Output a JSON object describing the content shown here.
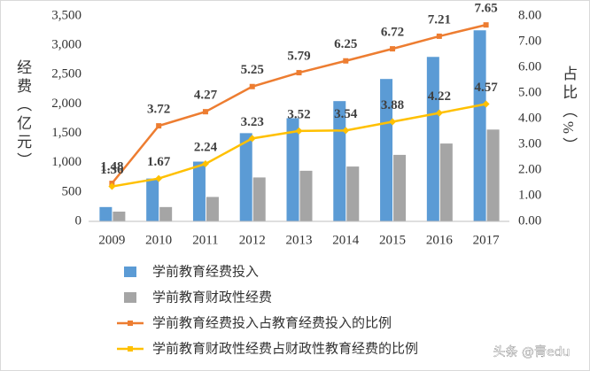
{
  "chart_data": {
    "type": "bar",
    "categories": [
      "2009",
      "2010",
      "2011",
      "2012",
      "2013",
      "2014",
      "2015",
      "2016",
      "2017"
    ],
    "series": [
      {
        "name": "学前教育经费投入",
        "color": "#5b9bd5",
        "type": "bar",
        "values": [
          244,
          730,
          1018,
          1503,
          1758,
          2049,
          2426,
          2802,
          3255
        ]
      },
      {
        "name": "学前教育财政性经费",
        "color": "#a5a5a5",
        "type": "bar",
        "values": [
          166,
          244,
          416,
          748,
          862,
          934,
          1133,
          1326,
          1564
        ]
      },
      {
        "name": "学前教育经费投入占教育经费投入的比例",
        "color": "#ed7d31",
        "type": "line",
        "axis": "y2",
        "values": [
          1.48,
          3.72,
          4.27,
          5.25,
          5.79,
          6.25,
          6.72,
          7.21,
          7.65
        ]
      },
      {
        "name": "学前教育财政性经费占财政性教育经费的比例",
        "color": "#ffc000",
        "type": "line",
        "axis": "y2",
        "values": [
          1.36,
          1.67,
          2.24,
          3.23,
          3.52,
          3.54,
          3.88,
          4.22,
          4.57
        ]
      }
    ],
    "ylabel": "经费（亿元）",
    "y2label": "占比（%）",
    "ylim": [
      0,
      3500
    ],
    "yticks": [
      0,
      500,
      {
        "value": 1000,
        "label": "1,000"
      },
      {
        "value": 1500,
        "label": "1,500"
      },
      {
        "value": 2000,
        "label": "2,000"
      },
      {
        "value": 2500,
        "label": "2,500"
      },
      {
        "value": 3000,
        "label": "3,000"
      },
      {
        "value": 3500,
        "label": "3,500"
      }
    ],
    "y2lim": [
      0,
      8
    ],
    "y2ticks": [
      {
        "value": 0,
        "label": "0.00"
      },
      {
        "value": 1,
        "label": "1.00"
      },
      {
        "value": 2,
        "label": "2.00"
      },
      {
        "value": 3,
        "label": "3.00"
      },
      {
        "value": 4,
        "label": "4.00"
      },
      {
        "value": 5,
        "label": "5.00"
      },
      {
        "value": 6,
        "label": "6.00"
      },
      {
        "value": 7,
        "label": "7.00"
      },
      {
        "value": 8,
        "label": "8.00"
      }
    ],
    "watermark": "头条 @青edu"
  }
}
